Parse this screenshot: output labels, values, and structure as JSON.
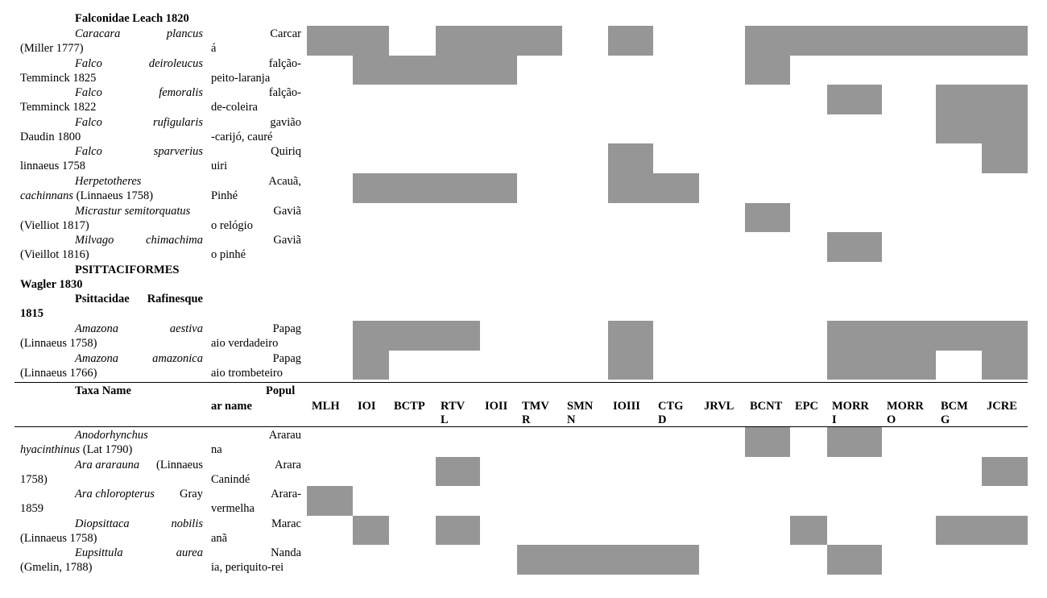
{
  "colors": {
    "presence_fill": "#969696",
    "text": "#000000",
    "rule": "#000000"
  },
  "columns": {
    "taxa_header": "Taxa Name",
    "popular_header": [
      "Popul",
      "ar name"
    ],
    "sites": [
      [
        "MLH"
      ],
      [
        "IOI"
      ],
      [
        "BCTP"
      ],
      [
        "RTV",
        "L"
      ],
      [
        "IOII"
      ],
      [
        "TMV",
        "R"
      ],
      [
        "SMN",
        "N"
      ],
      [
        "IOIII"
      ],
      [
        "CTG",
        "D"
      ],
      [
        "JRVL"
      ],
      [
        "BCNT"
      ],
      [
        "EPC"
      ],
      [
        "MORR",
        "I"
      ],
      [
        "MORR",
        "O"
      ],
      [
        "BCM",
        "G"
      ],
      [
        "JCRE"
      ]
    ]
  },
  "rows_top": [
    {
      "kind": "family",
      "title": "Falconidae Leach 1820"
    },
    {
      "kind": "species",
      "genus": "Caracara",
      "epithet": "plancus",
      "author": "(Miller 1777)",
      "pop1": "Carcar",
      "pop2": "á",
      "presence": [
        1,
        1,
        0,
        1,
        1,
        1,
        0,
        1,
        0,
        0,
        1,
        1,
        1,
        1,
        1,
        1
      ]
    },
    {
      "kind": "species",
      "genus": "Falco",
      "epithet": "deiroleucus",
      "author": "Temminck 1825",
      "pop1": "falção-",
      "pop2": "peito-laranja",
      "presence": [
        0,
        1,
        1,
        1,
        1,
        0,
        0,
        0,
        0,
        0,
        1,
        0,
        0,
        0,
        0,
        0
      ]
    },
    {
      "kind": "species",
      "genus": "Falco",
      "epithet": "femoralis",
      "author": "Temminck 1822",
      "pop1": "falção-",
      "pop2": "de-coleira",
      "presence": [
        0,
        0,
        0,
        0,
        0,
        0,
        0,
        0,
        0,
        0,
        0,
        0,
        1,
        0,
        1,
        1
      ]
    },
    {
      "kind": "species",
      "genus": "Falco",
      "epithet": "rufigularis",
      "author": "Daudin 1800",
      "pop1": "gavião",
      "pop2": "-carijó, cauré",
      "presence": [
        0,
        0,
        0,
        0,
        0,
        0,
        0,
        0,
        0,
        0,
        0,
        0,
        0,
        0,
        1,
        1
      ]
    },
    {
      "kind": "species",
      "genus": "Falco",
      "epithet": "sparverius",
      "author": "linnaeus 1758",
      "pop1": "Quiriq",
      "pop2": "uiri",
      "presence": [
        0,
        0,
        0,
        0,
        0,
        0,
        0,
        1,
        0,
        0,
        0,
        0,
        0,
        0,
        0,
        1
      ]
    },
    {
      "kind": "species2",
      "line1": "Herpetotheres",
      "line2_ital": "cachinnans",
      "line2_rest": " (Linnaeus 1758)",
      "pop1": "Acauã,",
      "pop2": "Pinhé",
      "presence": [
        0,
        1,
        1,
        1,
        1,
        0,
        0,
        1,
        1,
        0,
        0,
        0,
        0,
        0,
        0,
        0
      ]
    },
    {
      "kind": "species2",
      "line1": "Micrastur semitorquatus",
      "line2_ital": "",
      "line2_rest": "(Vielliot 1817)",
      "pop1": "Gaviã",
      "pop2": "o relógio",
      "presence": [
        0,
        0,
        0,
        0,
        0,
        0,
        0,
        0,
        0,
        0,
        1,
        0,
        0,
        0,
        0,
        0
      ]
    },
    {
      "kind": "species",
      "genus": "Milvago",
      "epithet": "chimachima",
      "author": "(Vieillot 1816)",
      "pop1": "Gaviã",
      "pop2": "o pinhé",
      "presence": [
        0,
        0,
        0,
        0,
        0,
        0,
        0,
        0,
        0,
        0,
        0,
        0,
        1,
        0,
        0,
        0
      ]
    },
    {
      "kind": "order",
      "line1": "PSITTACIFORMES",
      "line2": "Wagler 1830"
    },
    {
      "kind": "family2",
      "w1": "Psittacidae",
      "w2": "Rafinesque",
      "line2": "1815"
    },
    {
      "kind": "species",
      "genus": "Amazona",
      "epithet": "aestiva",
      "author": "(Linnaeus 1758)",
      "pop1": "Papag",
      "pop2": "aio verdadeiro",
      "presence": [
        0,
        1,
        1,
        1,
        0,
        0,
        0,
        1,
        0,
        0,
        0,
        0,
        1,
        1,
        1,
        1
      ]
    },
    {
      "kind": "species",
      "genus": "Amazona",
      "epithet": "amazonica",
      "author": "(Linnaeus 1766)",
      "pop1": "Papag",
      "pop2": "aio trombeteiro",
      "presence": [
        0,
        1,
        0,
        0,
        0,
        0,
        0,
        1,
        0,
        0,
        0,
        0,
        1,
        1,
        0,
        1
      ]
    }
  ],
  "rows_bottom": [
    {
      "kind": "species2",
      "line1": "Anodorhynchus",
      "line2_ital": "hyacinthinus",
      "line2_rest": " (Lat 1790)",
      "pop1": "Ararau",
      "pop2": "na",
      "presence": [
        0,
        0,
        0,
        0,
        0,
        0,
        0,
        0,
        0,
        0,
        1,
        0,
        1,
        0,
        0,
        0
      ]
    },
    {
      "kind": "species3",
      "line1_ital": "Ara ararauna",
      "line1_rest": " (Linnaeus",
      "line2": "1758)",
      "pop1": "Arara",
      "pop2": "Canindé",
      "presence": [
        0,
        0,
        0,
        1,
        0,
        0,
        0,
        0,
        0,
        0,
        0,
        0,
        0,
        0,
        0,
        1
      ]
    },
    {
      "kind": "species3",
      "line1_ital": "Ara chloropterus",
      "line1_rest": " Gray",
      "line2": "1859",
      "pop1": "Arara-",
      "pop2": "vermelha",
      "presence": [
        1,
        0,
        0,
        0,
        0,
        0,
        0,
        0,
        0,
        0,
        0,
        0,
        0,
        0,
        0,
        0
      ]
    },
    {
      "kind": "species",
      "genus": "Diopsittaca",
      "epithet": "nobilis",
      "author": "(Linnaeus 1758)",
      "pop1": "Marac",
      "pop2": "anã",
      "presence": [
        0,
        1,
        0,
        1,
        0,
        0,
        0,
        0,
        0,
        0,
        0,
        1,
        0,
        0,
        1,
        1
      ]
    },
    {
      "kind": "species",
      "genus": "Eupsittula",
      "epithet": "aurea",
      "author": "(Gmelin, 1788)",
      "pop1": "Nanda",
      "pop2": "ia, periquito-rei",
      "presence": [
        0,
        0,
        0,
        0,
        0,
        1,
        1,
        1,
        1,
        0,
        0,
        0,
        1,
        0,
        0,
        0
      ]
    }
  ]
}
